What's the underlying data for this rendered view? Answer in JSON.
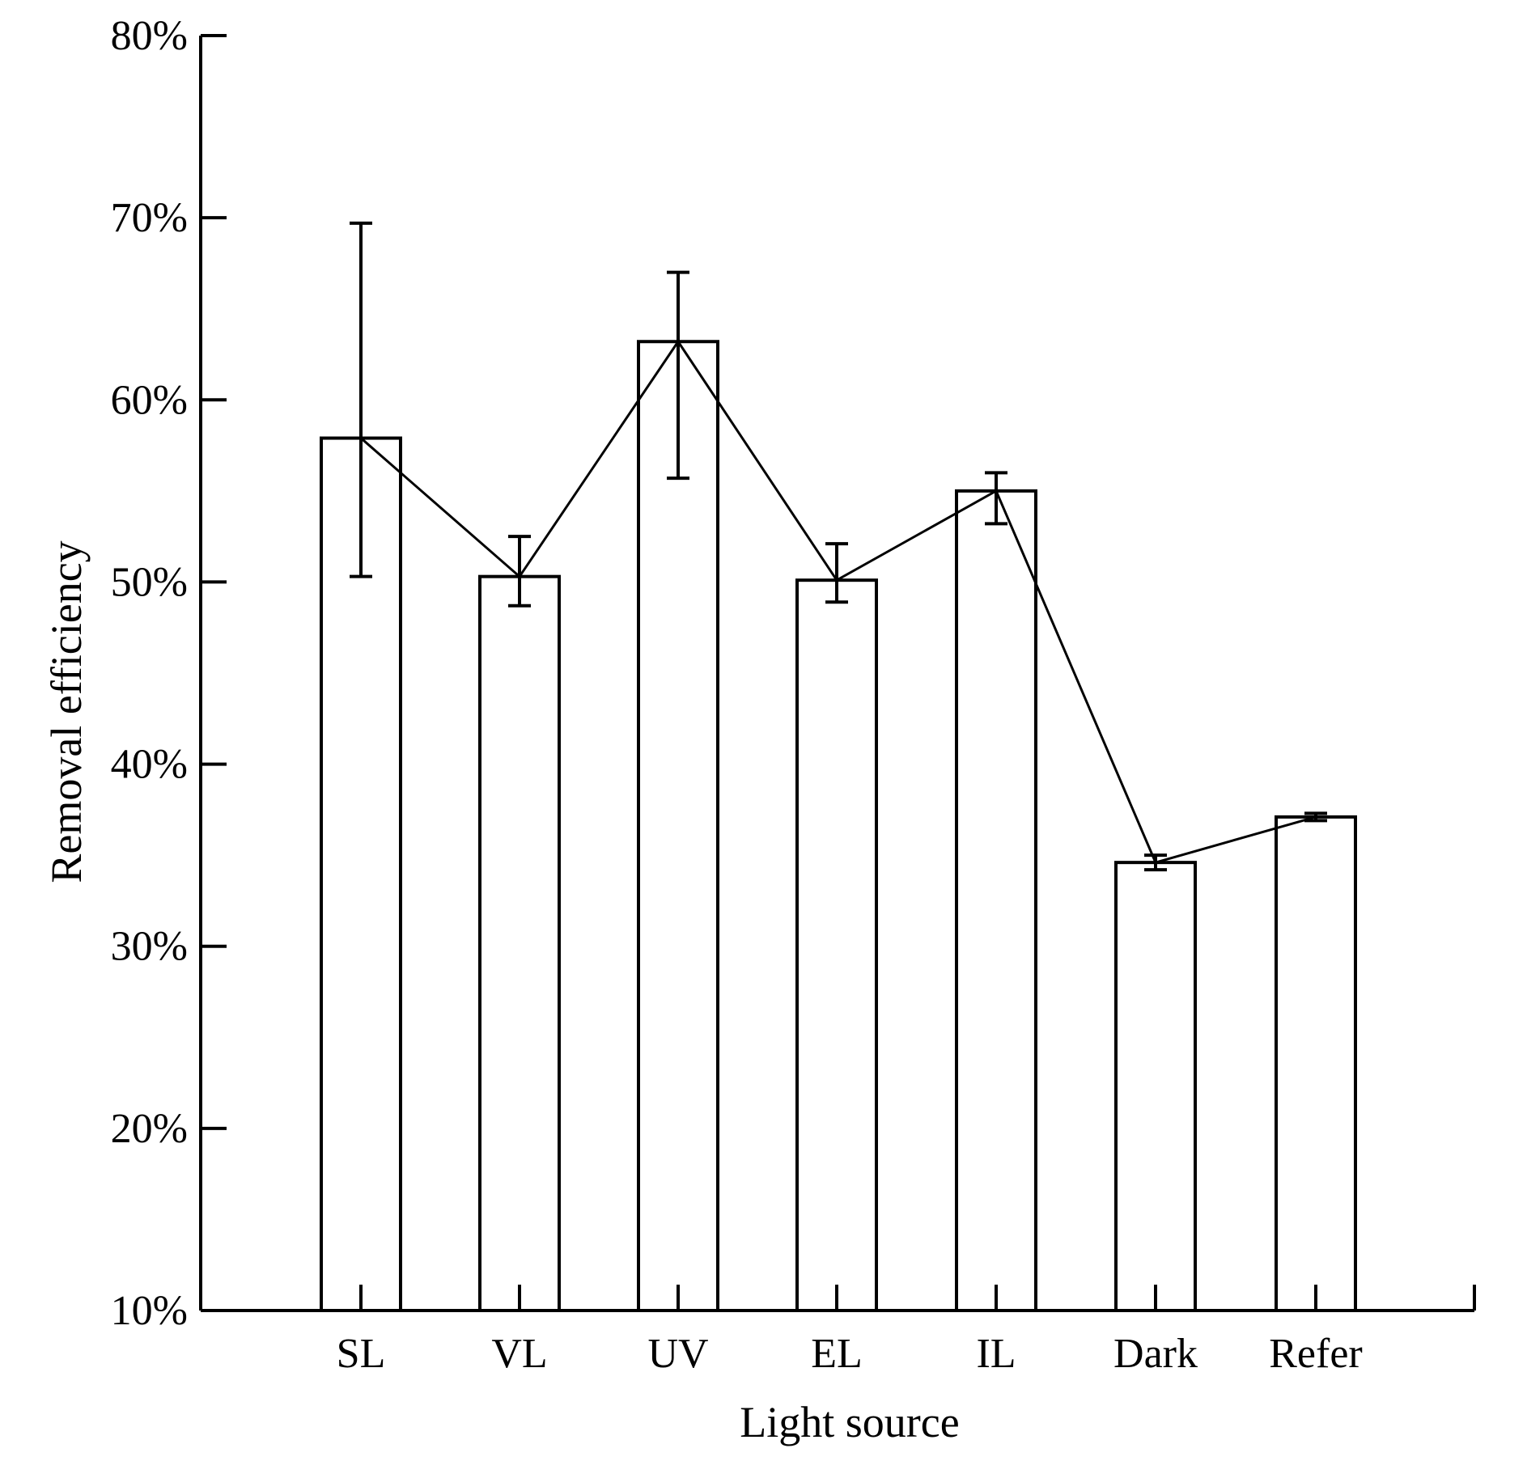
{
  "chart_data": {
    "type": "bar",
    "xlabel": "Light source",
    "ylabel": "Removal efficiency",
    "ylim": [
      0.1,
      0.8
    ],
    "yticks": [
      0.1,
      0.2,
      0.3,
      0.4,
      0.5,
      0.6,
      0.7,
      0.8
    ],
    "ytick_labels": [
      "10%",
      "20%",
      "30%",
      "40%",
      "50%",
      "60%",
      "70%",
      "80%"
    ],
    "categories": [
      "SL",
      "VL",
      "UV",
      "EL",
      "IL",
      "Dark",
      "Refer"
    ],
    "values": [
      0.579,
      0.503,
      0.632,
      0.501,
      0.55,
      0.346,
      0.371
    ],
    "error_low": [
      0.503,
      0.487,
      0.557,
      0.489,
      0.532,
      0.342,
      0.369
    ],
    "error_high": [
      0.697,
      0.525,
      0.67,
      0.521,
      0.56,
      0.35,
      0.373
    ],
    "connecting_line": true,
    "grid": false,
    "legend": "none"
  }
}
